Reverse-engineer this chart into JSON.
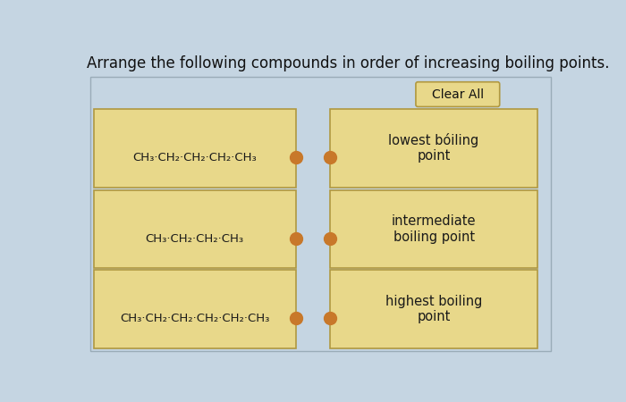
{
  "title": "Arrange the following compounds in order of increasing boiling points.",
  "title_fontsize": 12,
  "background_color": "#c5d5e2",
  "box_bg_yellow": "#e8d88a",
  "box_border": "#b09840",
  "clear_all_bg": "#e8d88a",
  "clear_all_border": "#b09840",
  "clear_all_text": "Clear All",
  "dot_color": "#c8782a",
  "left_compounds": [
    "CH₃·CH₂·CH₂·CH₂·CH₃",
    "CH₃·CH₂·CH₂·CH₃",
    "CH₃·CH₂·CH₂·CH₂·CH₂·CH₃"
  ],
  "right_labels": [
    "lowest bóiling\npoint",
    "intermediate\nboiling point",
    "highest boiling\npoint"
  ]
}
